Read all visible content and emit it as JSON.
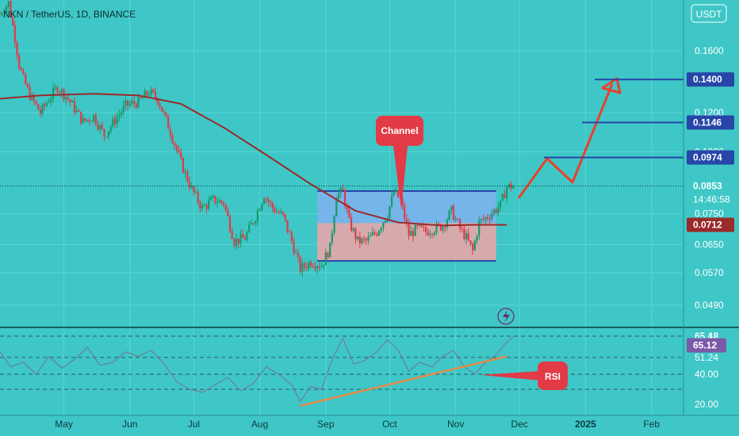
{
  "header": {
    "title": "NKN / TetherUS, 1D, BINANCE"
  },
  "price_axis": {
    "currency": "USDT"
  },
  "colors": {
    "background": "#3fc7c7",
    "candle_up": "#169a6a",
    "candle_down": "#e23a46",
    "ma_line": "#9b2a2a",
    "channel_upper": "#7fb1f0",
    "channel_lower": "#e7a6aa",
    "target_line": "#2746a8",
    "arrow": "#e8412d",
    "trendline": "#e58a48"
  },
  "chart_data": [
    {
      "type": "candlestick",
      "title": "NKN / TetherUS, 1D, BINANCE",
      "ylabel": "USDT",
      "x_ticks": [
        "May",
        "Jun",
        "Jul",
        "Aug",
        "Sep",
        "Oct",
        "Nov",
        "Dec",
        "2025",
        "Feb"
      ],
      "y_ticks": [
        0.16,
        0.12,
        0.1,
        0.075,
        0.065,
        0.057,
        0.049
      ],
      "y_tick_labels": [
        "0.1600",
        "0.1200",
        "0.1000",
        "0.0750",
        "0.0650",
        "0.0570",
        "0.0490"
      ],
      "ylim": [
        0.045,
        0.2
      ],
      "log_scale": true,
      "series": [
        {
          "path": [
            [
              "2024-04-01",
              0.19
            ],
            [
              "2024-04-05",
              0.2
            ],
            [
              "2024-04-08",
              0.17
            ],
            [
              "2024-04-10",
              0.15
            ],
            [
              "2024-04-12",
              0.14
            ],
            [
              "2024-04-15",
              0.13
            ],
            [
              "2024-04-20",
              0.12
            ],
            [
              "2024-04-25",
              0.13
            ],
            [
              "2024-04-28",
              0.135
            ],
            [
              "2024-05-03",
              0.128
            ],
            [
              "2024-05-10",
              0.115
            ],
            [
              "2024-05-15",
              0.118
            ],
            [
              "2024-05-20",
              0.108
            ],
            [
              "2024-05-25",
              0.116
            ],
            [
              "2024-05-30",
              0.124
            ],
            [
              "2024-06-05",
              0.126
            ],
            [
              "2024-06-10",
              0.132
            ],
            [
              "2024-06-14",
              0.128
            ],
            [
              "2024-06-20",
              0.11
            ],
            [
              "2024-06-25",
              0.095
            ],
            [
              "2024-06-30",
              0.084
            ],
            [
              "2024-07-05",
              0.077
            ],
            [
              "2024-07-10",
              0.08
            ],
            [
              "2024-07-15",
              0.079
            ],
            [
              "2024-07-20",
              0.066
            ],
            [
              "2024-07-25",
              0.067
            ],
            [
              "2024-07-30",
              0.074
            ],
            [
              "2024-08-03",
              0.082
            ],
            [
              "2024-08-07",
              0.077
            ],
            [
              "2024-08-12",
              0.074
            ],
            [
              "2024-08-16",
              0.066
            ],
            [
              "2024-08-20",
              0.058
            ],
            [
              "2024-08-25",
              0.06
            ],
            [
              "2024-08-30",
              0.059
            ],
            [
              "2024-09-03",
              0.064
            ],
            [
              "2024-09-06",
              0.082
            ],
            [
              "2024-09-09",
              0.083
            ],
            [
              "2024-09-12",
              0.072
            ],
            [
              "2024-09-16",
              0.066
            ],
            [
              "2024-09-20",
              0.066
            ],
            [
              "2024-09-25",
              0.069
            ],
            [
              "2024-09-30",
              0.075
            ],
            [
              "2024-10-03",
              0.083
            ],
            [
              "2024-10-06",
              0.08
            ],
            [
              "2024-10-10",
              0.068
            ],
            [
              "2024-10-14",
              0.07
            ],
            [
              "2024-10-18",
              0.069
            ],
            [
              "2024-10-22",
              0.07
            ],
            [
              "2024-10-26",
              0.071
            ],
            [
              "2024-10-30",
              0.076
            ],
            [
              "2024-11-03",
              0.07
            ],
            [
              "2024-11-06",
              0.067
            ],
            [
              "2024-11-09",
              0.063
            ],
            [
              "2024-11-12",
              0.072
            ],
            [
              "2024-11-16",
              0.074
            ],
            [
              "2024-11-19",
              0.076
            ],
            [
              "2024-11-22",
              0.078
            ],
            [
              "2024-11-25",
              0.085
            ],
            [
              "2024-11-28",
              0.0853
            ]
          ]
        }
      ]
    },
    {
      "type": "line",
      "series": [
        {
          "name": "Moving average",
          "points": [
            [
              "2024-04-01",
              0.128
            ],
            [
              "2024-04-20",
              0.13
            ],
            [
              "2024-05-15",
              0.131
            ],
            [
              "2024-06-05",
              0.13
            ],
            [
              "2024-06-25",
              0.125
            ],
            [
              "2024-07-15",
              0.112
            ],
            [
              "2024-08-05",
              0.098
            ],
            [
              "2024-08-25",
              0.086
            ],
            [
              "2024-09-15",
              0.076
            ],
            [
              "2024-10-05",
              0.072
            ],
            [
              "2024-10-25",
              0.071
            ],
            [
              "2024-11-10",
              0.0712
            ],
            [
              "2024-11-25",
              0.0712
            ]
          ]
        }
      ]
    },
    {
      "type": "line",
      "title": "RSI",
      "y_ticks": [
        65.48,
        65.12,
        51.24,
        40,
        20
      ],
      "y_tick_labels": [
        "65.48",
        "65.12",
        "51.24",
        "40.00",
        "20.00"
      ],
      "ylim": [
        18,
        70
      ],
      "series": [
        {
          "values": [
            [
              "2024-04-01",
              55
            ],
            [
              "2024-04-06",
              45
            ],
            [
              "2024-04-12",
              48
            ],
            [
              "2024-04-18",
              40
            ],
            [
              "2024-04-24",
              52
            ],
            [
              "2024-04-30",
              44
            ],
            [
              "2024-05-06",
              50
            ],
            [
              "2024-05-12",
              58
            ],
            [
              "2024-05-18",
              46
            ],
            [
              "2024-05-24",
              48
            ],
            [
              "2024-05-30",
              55
            ],
            [
              "2024-06-05",
              52
            ],
            [
              "2024-06-11",
              56
            ],
            [
              "2024-06-17",
              47
            ],
            [
              "2024-06-23",
              35
            ],
            [
              "2024-06-29",
              30
            ],
            [
              "2024-07-05",
              28
            ],
            [
              "2024-07-11",
              33
            ],
            [
              "2024-07-17",
              38
            ],
            [
              "2024-07-23",
              29
            ],
            [
              "2024-07-29",
              34
            ],
            [
              "2024-08-04",
              45
            ],
            [
              "2024-08-10",
              40
            ],
            [
              "2024-08-16",
              33
            ],
            [
              "2024-08-20",
              22
            ],
            [
              "2024-08-25",
              32
            ],
            [
              "2024-08-30",
              30
            ],
            [
              "2024-09-04",
              50
            ],
            [
              "2024-09-09",
              64
            ],
            [
              "2024-09-14",
              47
            ],
            [
              "2024-09-19",
              49
            ],
            [
              "2024-09-25",
              55
            ],
            [
              "2024-09-30",
              63
            ],
            [
              "2024-10-05",
              56
            ],
            [
              "2024-10-10",
              42
            ],
            [
              "2024-10-15",
              48
            ],
            [
              "2024-10-21",
              45
            ],
            [
              "2024-10-26",
              52
            ],
            [
              "2024-10-31",
              56
            ],
            [
              "2024-11-05",
              45
            ],
            [
              "2024-11-10",
              40
            ],
            [
              "2024-11-15",
              48
            ],
            [
              "2024-11-20",
              53
            ],
            [
              "2024-11-24",
              60
            ],
            [
              "2024-11-28",
              65.12
            ]
          ]
        }
      ]
    }
  ],
  "annotations": {
    "channel_label": "Channel",
    "rsi_label": "RSI",
    "price_tags": [
      {
        "value": "0.1400",
        "kind": "target"
      },
      {
        "value": "0.1146",
        "kind": "target"
      },
      {
        "value": "0.0974",
        "kind": "target"
      },
      {
        "value": "0.0853",
        "kind": "last"
      },
      {
        "value": "14:46:58",
        "kind": "countdown"
      },
      {
        "value": "0.0712",
        "kind": "ma"
      }
    ],
    "rsi_tags": [
      {
        "value": "65.12",
        "kind": "rsi"
      }
    ]
  }
}
